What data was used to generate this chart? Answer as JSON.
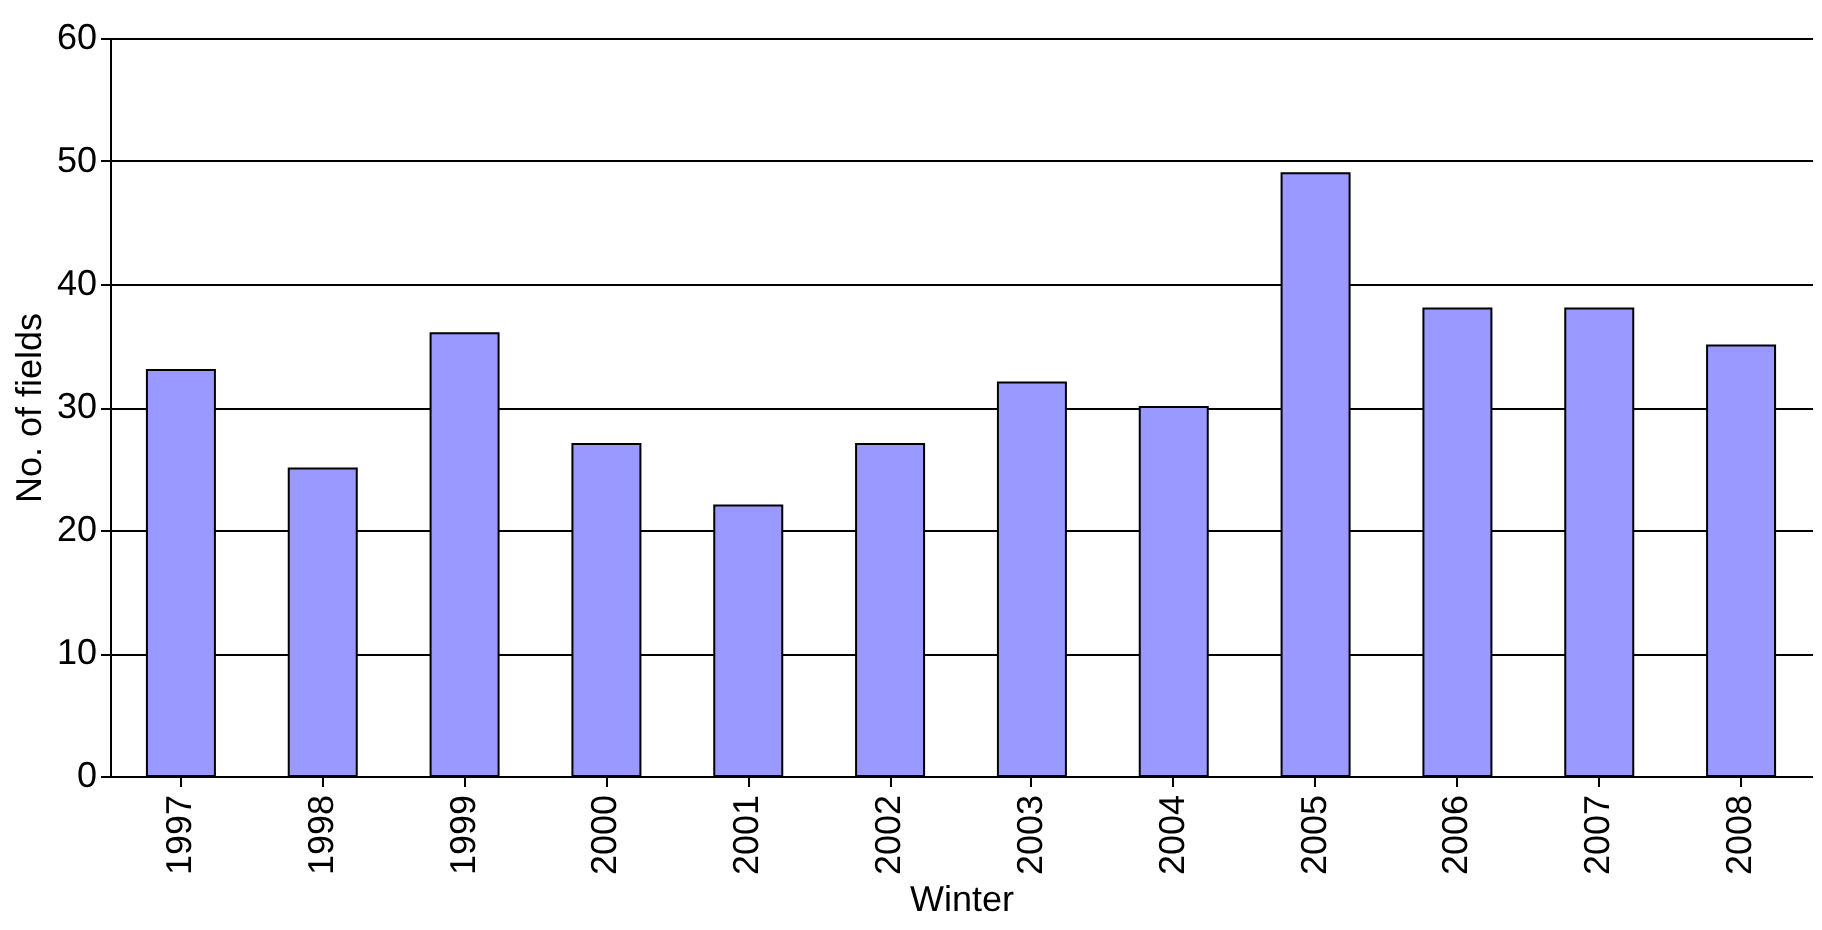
{
  "chart_data": {
    "type": "bar",
    "xlabel": "Winter",
    "ylabel": "No. of fields",
    "categories": [
      "1997",
      "1998",
      "1999",
      "2000",
      "2001",
      "2002",
      "2003",
      "2004",
      "2005",
      "2006",
      "2007",
      "2008"
    ],
    "values": [
      33,
      25,
      36,
      27,
      22,
      27,
      32,
      30,
      49,
      38,
      38,
      35
    ],
    "color": "#9999ff",
    "ylim": [
      0,
      60
    ],
    "yticks": [
      0,
      10,
      20,
      30,
      40,
      50,
      60
    ],
    "grid": "y"
  }
}
